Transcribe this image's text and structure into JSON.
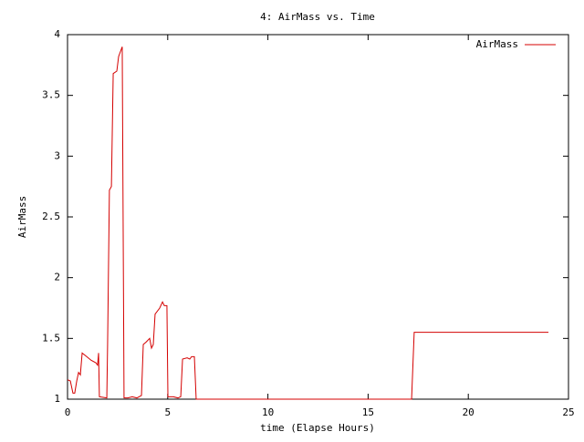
{
  "chart_data": {
    "type": "line",
    "title": "4: AirMass vs. Time",
    "x_label": "time (Elapse Hours)",
    "y_label": "AirMass",
    "x": [
      0,
      0.14,
      0.27,
      0.36,
      0.46,
      0.55,
      0.64,
      0.73,
      0.96,
      1.18,
      1.41,
      1.5,
      1.55,
      1.59,
      1.96,
      2.0,
      2.09,
      2.19,
      2.28,
      2.46,
      2.55,
      2.73,
      2.82,
      3.01,
      3.23,
      3.46,
      3.69,
      3.78,
      3.92,
      4.1,
      4.19,
      4.28,
      4.37,
      4.6,
      4.74,
      4.83,
      4.96,
      5.01,
      5.28,
      5.51,
      5.65,
      5.74,
      5.97,
      6.1,
      6.19,
      6.33,
      6.42,
      17.17,
      17.3,
      24.0
    ],
    "series": [
      {
        "name": "AirMass",
        "color": "#d40000",
        "values": [
          1.16,
          1.15,
          1.05,
          1.05,
          1.15,
          1.22,
          1.2,
          1.38,
          1.35,
          1.32,
          1.3,
          1.28,
          1.38,
          1.02,
          1.01,
          1.45,
          2.72,
          2.75,
          3.68,
          3.7,
          3.82,
          3.9,
          1.01,
          1.01,
          1.02,
          1.01,
          1.03,
          1.45,
          1.47,
          1.5,
          1.42,
          1.45,
          1.7,
          1.75,
          1.8,
          1.77,
          1.77,
          1.02,
          1.02,
          1.01,
          1.02,
          1.33,
          1.34,
          1.33,
          1.35,
          1.35,
          1.0,
          1.0,
          1.55,
          1.55
        ]
      }
    ],
    "xlim": [
      0,
      25
    ],
    "xticks": [
      0,
      5,
      10,
      15,
      20,
      25
    ],
    "ylim": [
      1,
      4
    ],
    "yticks": [
      1,
      1.5,
      2,
      2.5,
      3,
      3.5,
      4
    ],
    "legend": "top-right"
  }
}
